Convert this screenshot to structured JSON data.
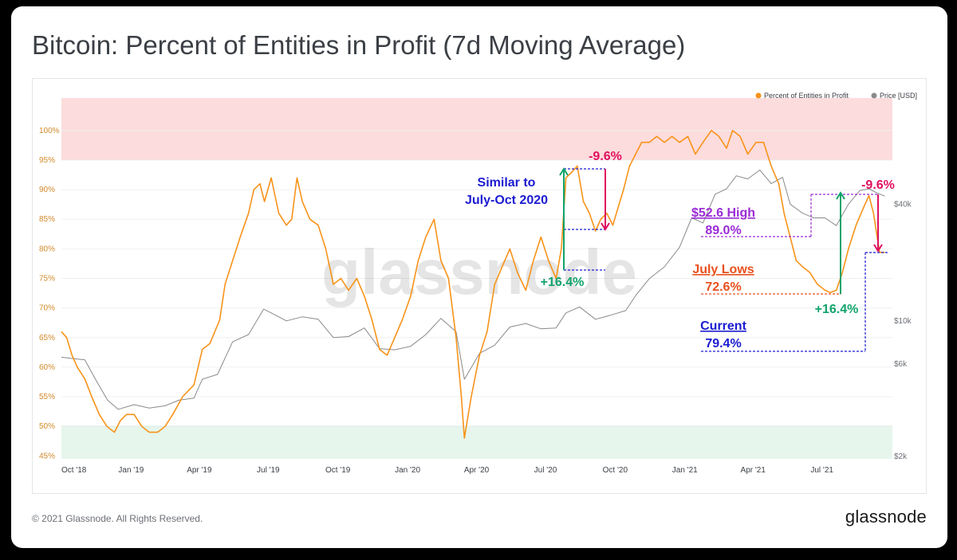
{
  "title": "Bitcoin: Percent of Entities in Profit (7d Moving Average)",
  "footer": {
    "copyright": "© 2021 Glassnode. All Rights Reserved.",
    "logo": "glassnode"
  },
  "watermark": "glassnode",
  "colors": {
    "profit": "#f7931a",
    "price": "#8a8a8a",
    "red_zone": "#fcdcdc",
    "green_zone": "#e6f6ec",
    "up_arrow": "#11a36b",
    "down_arrow": "#e0115f",
    "blue_text": "#1b1bd1",
    "purple_text": "#9b2bd6",
    "orange_text": "#e8501e"
  },
  "chart_data": {
    "type": "line",
    "legend": [
      {
        "name": "Percent of Entities in Profit",
        "color": "#f7931a"
      },
      {
        "name": "Price [USD]",
        "color": "#8a8a8a"
      }
    ],
    "legend_position": "top-right",
    "x_ticks": [
      "Oct '18",
      "Jan '19",
      "Apr '19",
      "Jul '19",
      "Oct '19",
      "Jan '20",
      "Apr '20",
      "Jul '20",
      "Oct '20",
      "Jan '21",
      "Apr '21",
      "Jul '21"
    ],
    "y_left_ticks": [
      "45%",
      "50%",
      "55%",
      "60%",
      "65%",
      "70%",
      "75%",
      "80%",
      "85%",
      "90%",
      "95%",
      "100%"
    ],
    "y_left_range": [
      44.5,
      105.5
    ],
    "y_right_ticks": [
      "$2k",
      "$6k",
      "$10k",
      "$40k"
    ],
    "zones": [
      {
        "from": 95,
        "to": 105.5,
        "color": "#fcdcdc"
      },
      {
        "from": 44.5,
        "to": 50,
        "color": "#e6f6ec"
      }
    ],
    "series": [
      {
        "name": "Percent of Entities in Profit",
        "axis": "left",
        "x": [
          "2018-10-01",
          "2018-10-08",
          "2018-10-15",
          "2018-10-22",
          "2018-11-01",
          "2018-11-10",
          "2018-11-20",
          "2018-11-30",
          "2018-12-10",
          "2018-12-18",
          "2018-12-26",
          "2019-01-05",
          "2019-01-15",
          "2019-01-25",
          "2019-02-05",
          "2019-02-15",
          "2019-02-25",
          "2019-03-10",
          "2019-03-25",
          "2019-04-05",
          "2019-04-15",
          "2019-04-28",
          "2019-05-05",
          "2019-05-15",
          "2019-05-25",
          "2019-06-05",
          "2019-06-12",
          "2019-06-20",
          "2019-06-26",
          "2019-07-05",
          "2019-07-15",
          "2019-07-25",
          "2019-08-01",
          "2019-08-08",
          "2019-08-15",
          "2019-08-25",
          "2019-09-05",
          "2019-09-15",
          "2019-09-25",
          "2019-10-05",
          "2019-10-15",
          "2019-10-26",
          "2019-11-05",
          "2019-11-15",
          "2019-11-25",
          "2019-12-05",
          "2019-12-15",
          "2019-12-25",
          "2020-01-05",
          "2020-01-15",
          "2020-01-25",
          "2020-02-05",
          "2020-02-14",
          "2020-02-24",
          "2020-03-05",
          "2020-03-12",
          "2020-03-16",
          "2020-03-25",
          "2020-04-05",
          "2020-04-15",
          "2020-04-25",
          "2020-05-05",
          "2020-05-15",
          "2020-05-25",
          "2020-06-05",
          "2020-06-15",
          "2020-06-25",
          "2020-07-05",
          "2020-07-15",
          "2020-07-22",
          "2020-07-28",
          "2020-08-05",
          "2020-08-12",
          "2020-08-20",
          "2020-08-28",
          "2020-09-05",
          "2020-09-12",
          "2020-09-20",
          "2020-09-28",
          "2020-10-05",
          "2020-10-12",
          "2020-10-20",
          "2020-10-28",
          "2020-11-05",
          "2020-11-15",
          "2020-11-25",
          "2020-12-05",
          "2020-12-15",
          "2020-12-25",
          "2021-01-05",
          "2021-01-15",
          "2021-01-25",
          "2021-02-05",
          "2021-02-15",
          "2021-02-25",
          "2021-03-05",
          "2021-03-15",
          "2021-03-25",
          "2021-04-05",
          "2021-04-15",
          "2021-04-25",
          "2021-05-05",
          "2021-05-12",
          "2021-05-20",
          "2021-05-28",
          "2021-06-05",
          "2021-06-15",
          "2021-06-25",
          "2021-07-05",
          "2021-07-12",
          "2021-07-20",
          "2021-07-28",
          "2021-08-05",
          "2021-08-15",
          "2021-08-25",
          "2021-09-01",
          "2021-09-07",
          "2021-09-15",
          "2021-09-22"
        ],
        "y": [
          66,
          65,
          62,
          60,
          58,
          55,
          52,
          50,
          49,
          51,
          52,
          52,
          50,
          49,
          49,
          50,
          52,
          55,
          57,
          63,
          64,
          68,
          74,
          78,
          82,
          86,
          90,
          91,
          88,
          92,
          86,
          84,
          85,
          92,
          88,
          85,
          84,
          80,
          74,
          75,
          73,
          75,
          72,
          68,
          63,
          62,
          65,
          68,
          72,
          78,
          82,
          85,
          78,
          75,
          65,
          55,
          48,
          55,
          62,
          66,
          74,
          77,
          80,
          76,
          73,
          78,
          82,
          78,
          75,
          80,
          92,
          93,
          94,
          88,
          86,
          83,
          85,
          86,
          84,
          87,
          90,
          94,
          96,
          98,
          98,
          99,
          98,
          99,
          98,
          99,
          96,
          98,
          100,
          99,
          97,
          100,
          99,
          96,
          98,
          98,
          94,
          91,
          86,
          82,
          78,
          77,
          76,
          74,
          73,
          72.6,
          73,
          76,
          80,
          84,
          87,
          89,
          86,
          79.4,
          79.4
        ]
      },
      {
        "name": "Price [USD]",
        "axis": "right",
        "x": [
          "2018-10-01",
          "2018-10-15",
          "2018-11-01",
          "2018-11-15",
          "2018-12-01",
          "2018-12-15",
          "2019-01-05",
          "2019-01-25",
          "2019-02-15",
          "2019-03-05",
          "2019-03-25",
          "2019-04-05",
          "2019-04-25",
          "2019-05-15",
          "2019-06-05",
          "2019-06-25",
          "2019-07-05",
          "2019-07-25",
          "2019-08-15",
          "2019-09-05",
          "2019-09-25",
          "2019-10-15",
          "2019-11-05",
          "2019-11-25",
          "2019-12-15",
          "2020-01-05",
          "2020-01-25",
          "2020-02-14",
          "2020-03-05",
          "2020-03-16",
          "2020-04-05",
          "2020-04-25",
          "2020-05-15",
          "2020-06-05",
          "2020-06-25",
          "2020-07-15",
          "2020-07-28",
          "2020-08-15",
          "2020-09-05",
          "2020-09-25",
          "2020-10-15",
          "2020-10-28",
          "2020-11-15",
          "2020-12-05",
          "2020-12-25",
          "2021-01-10",
          "2021-01-25",
          "2021-02-10",
          "2021-02-25",
          "2021-03-10",
          "2021-03-25",
          "2021-04-10",
          "2021-04-25",
          "2021-05-10",
          "2021-05-20",
          "2021-06-05",
          "2021-06-20",
          "2021-07-05",
          "2021-07-20",
          "2021-08-05",
          "2021-08-20",
          "2021-09-01",
          "2021-09-10",
          "2021-09-22"
        ],
        "y": [
          6500,
          6400,
          6300,
          5000,
          3900,
          3500,
          3700,
          3550,
          3650,
          3900,
          4000,
          5000,
          5300,
          7800,
          8500,
          11500,
          11000,
          10000,
          10500,
          10200,
          8200,
          8300,
          9200,
          7200,
          7100,
          7400,
          8500,
          10300,
          8800,
          5000,
          6800,
          7500,
          9300,
          9700,
          9100,
          9200,
          11000,
          11800,
          10200,
          10700,
          11300,
          13500,
          16500,
          19000,
          24000,
          34000,
          32000,
          45000,
          48000,
          56000,
          54000,
          60000,
          51000,
          55000,
          40000,
          36000,
          34000,
          34000,
          31000,
          40000,
          47000,
          48000,
          46000,
          44000
        ]
      }
    ]
  },
  "annotations": {
    "similar": "Similar to",
    "july_oct": "July-Oct 2020",
    "minus_1": "-9.6%",
    "plus_1": "+16.4%",
    "minus_2": "-9.6%",
    "plus_2": "+16.4%",
    "high_label": "$52.6 High",
    "high_value": "89.0%",
    "lows_label": "July Lows",
    "lows_value": "72.6%",
    "current_label": "Current",
    "current_value": "79.4%"
  }
}
